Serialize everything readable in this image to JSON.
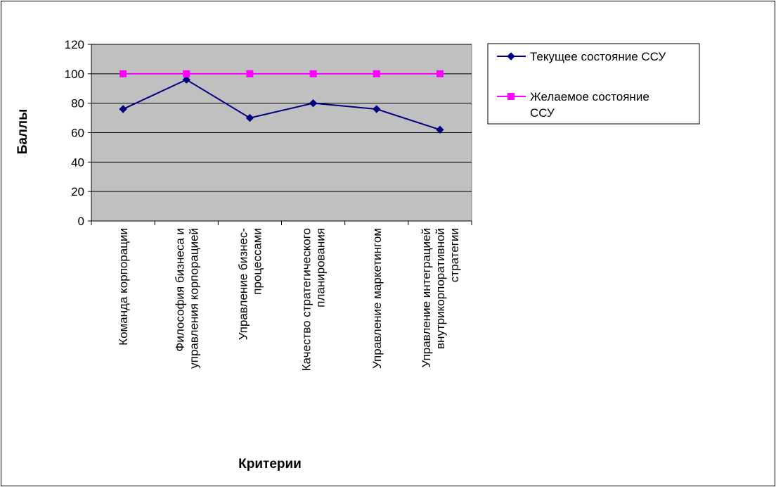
{
  "chart_data": {
    "type": "line",
    "title": "",
    "xlabel": "Критерии",
    "ylabel": "Баллы",
    "ylim": [
      0,
      120
    ],
    "yticks": [
      0,
      20,
      40,
      60,
      80,
      100,
      120
    ],
    "grid": true,
    "legend_position": "right",
    "plot_background": "#C0C0C0",
    "categories": [
      [
        "Команда корпорации"
      ],
      [
        "Философия бизнеса и",
        "управления корпорацией"
      ],
      [
        "Управление бизнес-",
        "процессами"
      ],
      [
        "Качество стратегического",
        "планирования"
      ],
      [
        "Управление маркетингом"
      ],
      [
        "Управление интеграцией",
        "внутрикорпоративной",
        "стратегии"
      ]
    ],
    "series": [
      {
        "name": [
          "Текущее состояние ССУ"
        ],
        "color": "#000080",
        "marker": "diamond",
        "values": [
          76,
          96,
          70,
          80,
          76,
          62
        ]
      },
      {
        "name": [
          "Желаемое состояние",
          "ССУ"
        ],
        "color": "#FF00FF",
        "marker": "square",
        "values": [
          100,
          100,
          100,
          100,
          100,
          100
        ]
      }
    ]
  }
}
